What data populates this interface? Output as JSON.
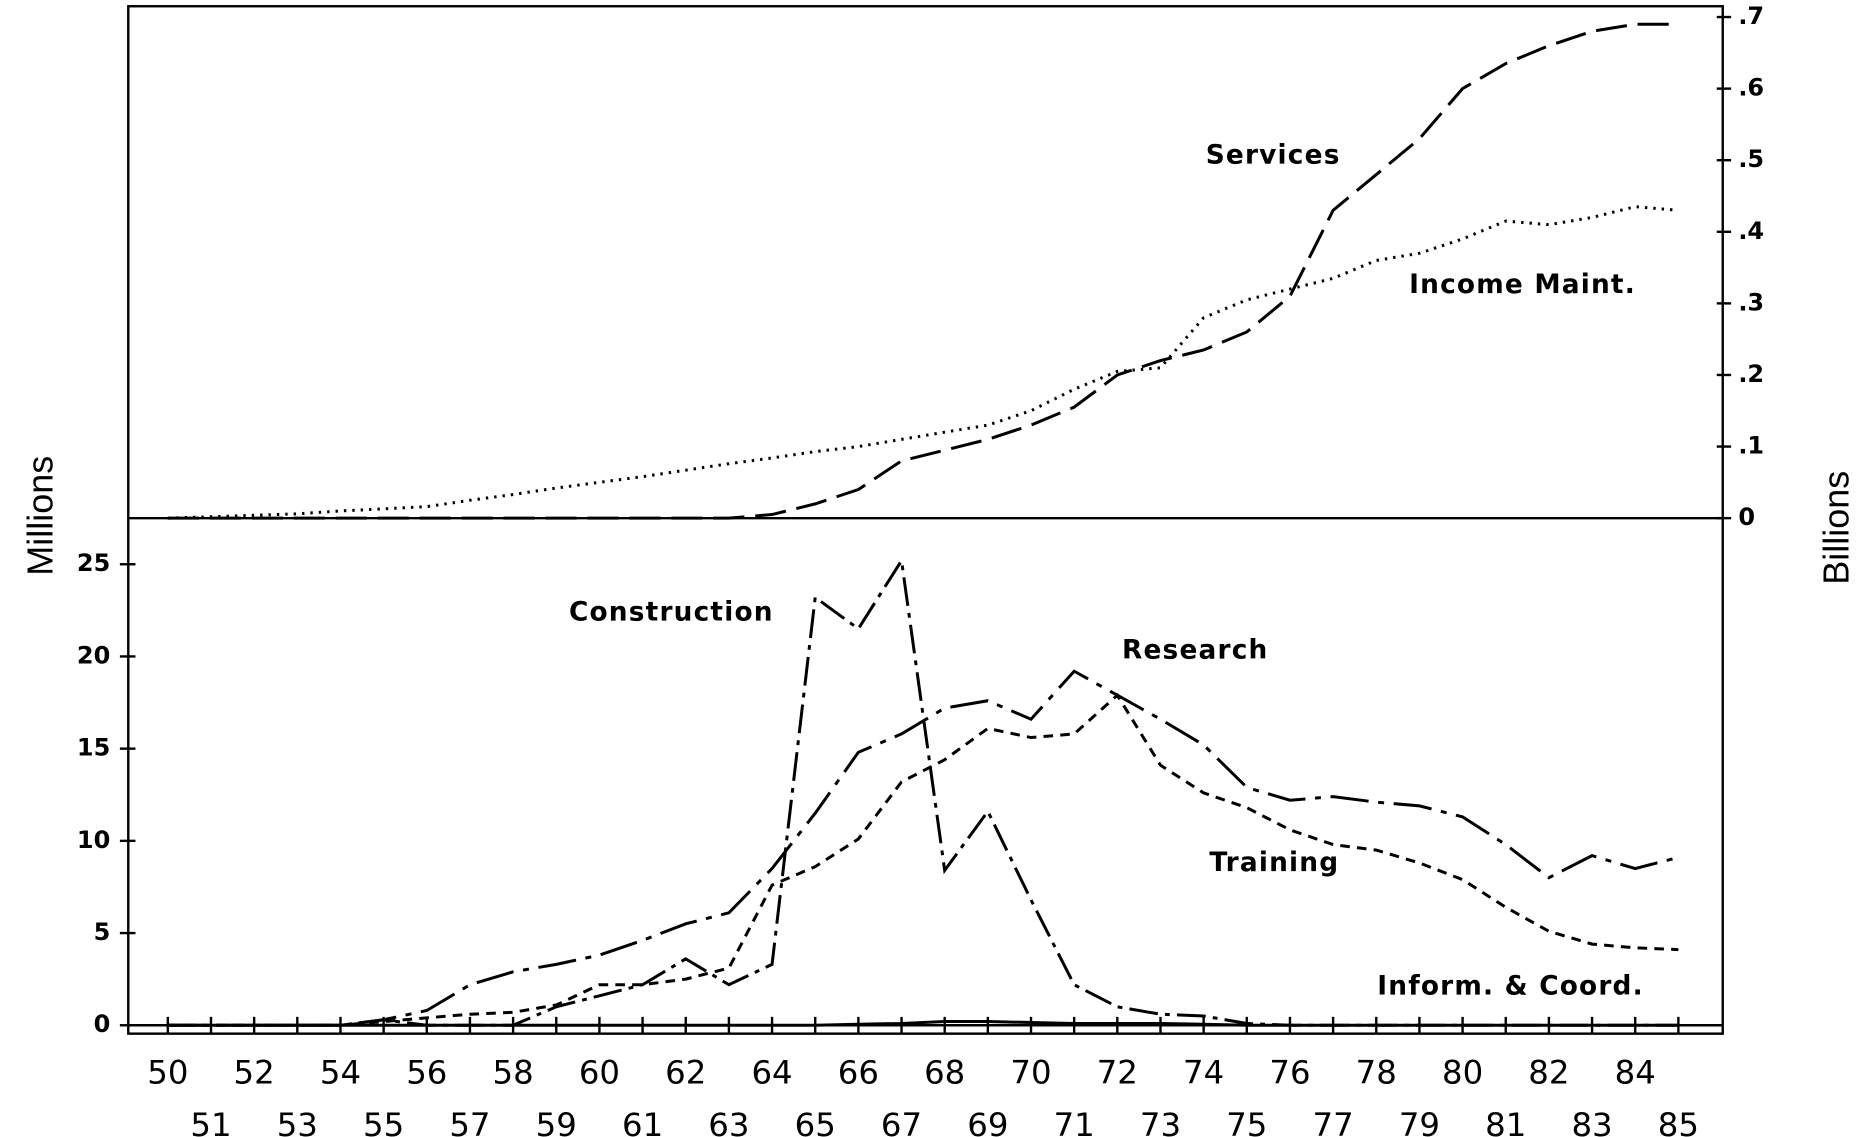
{
  "chart_data": [
    {
      "type": "line",
      "y_label": "Billions",
      "ylim": [
        0,
        0.7
      ],
      "yticks": [
        0,
        {
          "value": 0.1,
          "label": ".1"
        },
        {
          "value": 0.2,
          "label": ".2"
        },
        {
          "value": 0.3,
          "label": ".3"
        },
        {
          "value": 0.4,
          "label": ".4"
        },
        {
          "value": 0.5,
          "label": ".5"
        },
        {
          "value": 0.6,
          "label": ".6"
        },
        {
          "value": 0.7,
          "label": ".7"
        }
      ],
      "series": [
        {
          "name": "Services",
          "color": "#000000",
          "values": [
            0,
            0,
            0,
            0,
            0,
            0,
            0,
            0,
            0,
            0,
            0,
            0,
            0,
            0,
            0.005,
            0.02,
            0.04,
            0.08,
            0.095,
            0.11,
            0.13,
            0.155,
            0.2,
            0.22,
            0.235,
            0.26,
            0.31,
            0.43,
            0.48,
            0.53,
            0.6,
            0.635,
            0.66,
            0.68,
            0.69,
            0.69
          ]
        },
        {
          "name": "Income Maint.",
          "color": "#000000",
          "values": [
            0,
            0.002,
            0.004,
            0.006,
            0.01,
            0.013,
            0.016,
            0.025,
            0.033,
            0.042,
            0.05,
            0.058,
            0.067,
            0.076,
            0.084,
            0.093,
            0.1,
            0.11,
            0.12,
            0.13,
            0.15,
            0.18,
            0.205,
            0.21,
            0.28,
            0.305,
            0.32,
            0.335,
            0.36,
            0.37,
            0.39,
            0.415,
            0.41,
            0.42,
            0.435,
            0.43
          ]
        }
      ]
    },
    {
      "type": "line",
      "y_label": "Millions",
      "categories": [
        "50",
        "51",
        "52",
        "53",
        "54",
        "55",
        "56",
        "57",
        "58",
        "59",
        "60",
        "61",
        "62",
        "63",
        "64",
        "65",
        "66",
        "67",
        "68",
        "69",
        "70",
        "71",
        "72",
        "73",
        "74",
        "75",
        "76",
        "77",
        "78",
        "79",
        "80",
        "81",
        "82",
        "83",
        "84",
        "85"
      ],
      "ylim": [
        0,
        27.5
      ],
      "yticks": [
        0,
        5,
        10,
        15,
        20,
        25
      ],
      "series": [
        {
          "name": "Construction",
          "color": "#000000",
          "values": [
            0,
            0,
            0,
            0,
            0,
            0.3,
            0,
            0,
            0,
            1,
            1.6,
            2.2,
            3.6,
            2.2,
            3.3,
            23.2,
            21.5,
            25.2,
            8.4,
            11.6,
            6.8,
            2.2,
            1,
            0.6,
            0.5,
            0.1,
            0,
            0,
            0,
            0,
            0,
            0,
            0,
            0,
            0,
            0
          ]
        },
        {
          "name": "Research",
          "color": "#000000",
          "values": [
            0,
            0,
            0,
            0,
            0,
            0.3,
            0.8,
            2.2,
            2.9,
            3.3,
            3.8,
            4.6,
            5.5,
            6.1,
            8.5,
            11.5,
            14.8,
            15.8,
            17.2,
            17.6,
            16.6,
            19.2,
            17.9,
            16.6,
            15.2,
            12.9,
            12.2,
            12.4,
            12.1,
            11.9,
            11.3,
            9.8,
            8,
            9.2,
            8.5,
            9.1
          ]
        },
        {
          "name": "Training",
          "color": "#000000",
          "values": [
            0,
            0,
            0,
            0,
            0,
            0.2,
            0.4,
            0.6,
            0.7,
            1.1,
            2.2,
            2.2,
            2.5,
            3.1,
            7.6,
            8.6,
            10.1,
            13.2,
            14.4,
            16.1,
            15.6,
            15.8,
            17.9,
            14.1,
            12.6,
            11.8,
            10.6,
            9.8,
            9.5,
            8.8,
            7.9,
            6.4,
            5.1,
            4.4,
            4.2,
            4.1
          ]
        },
        {
          "name": "Inform. & Coord.",
          "color": "#000000",
          "values": [
            0,
            0,
            0,
            0,
            0,
            0,
            0,
            0,
            0,
            0,
            0,
            0,
            0,
            0,
            0,
            0,
            0.05,
            0.1,
            0.2,
            0.2,
            0.15,
            0.1,
            0.1,
            0.1,
            0.05,
            0,
            0,
            0,
            0,
            0,
            0,
            0,
            0,
            0,
            0,
            0
          ]
        }
      ]
    }
  ]
}
